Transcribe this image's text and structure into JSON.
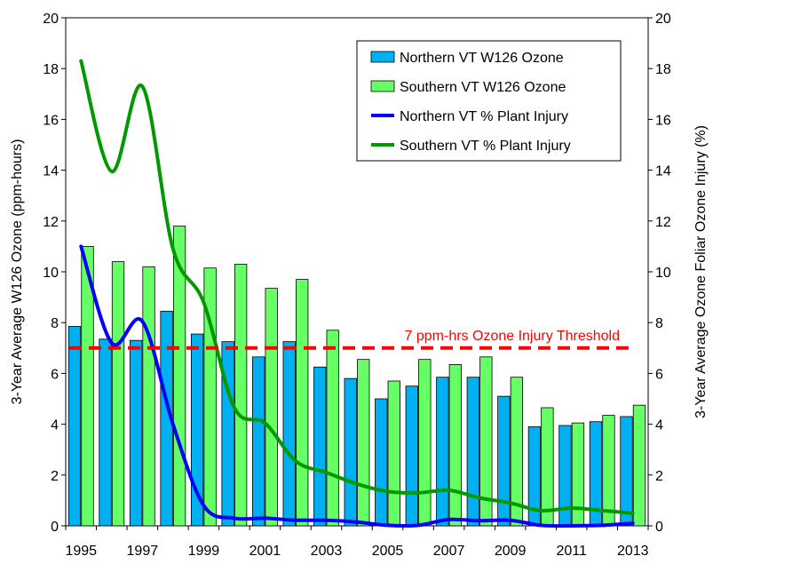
{
  "chart_data": {
    "type": "bar",
    "x": [
      1995,
      1996,
      1997,
      1998,
      1999,
      2000,
      2001,
      2002,
      2003,
      2004,
      2005,
      2006,
      2007,
      2008,
      2009,
      2010,
      2011,
      2012,
      2013
    ],
    "x_tick_labels": [
      "1995",
      "1997",
      "1999",
      "2001",
      "2003",
      "2005",
      "2007",
      "2009",
      "2011",
      "2013"
    ],
    "ylabel": "3-Year Average W126 Ozone (ppm-hours)",
    "y2label": "3-Year Average Ozone Foliar Ozone Injury (%)",
    "ylim": [
      0,
      20
    ],
    "y2lim": [
      0,
      20
    ],
    "y_ticks": [
      0,
      2,
      4,
      6,
      8,
      10,
      12,
      14,
      16,
      18,
      20
    ],
    "bar_series": [
      {
        "name": "Northern VT W126 Ozone",
        "color": "#00B0F0",
        "values": [
          7.85,
          7.35,
          7.3,
          8.45,
          7.55,
          7.25,
          6.65,
          7.25,
          6.25,
          5.8,
          5.0,
          5.5,
          5.85,
          5.85,
          5.1,
          3.9,
          3.95,
          4.1,
          4.3
        ]
      },
      {
        "name": "Southern VT W126 Ozone",
        "color": "#66FF66",
        "values": [
          11.0,
          10.4,
          10.2,
          11.8,
          10.15,
          10.3,
          9.35,
          9.7,
          7.7,
          6.55,
          5.7,
          6.55,
          6.35,
          6.65,
          5.85,
          4.65,
          4.05,
          4.35,
          4.75
        ]
      }
    ],
    "line_series": [
      {
        "name": "Northern VT % Plant Injury",
        "color": "#0000FF",
        "axis": "right",
        "values": [
          11.0,
          7.2,
          8.05,
          4.0,
          0.8,
          0.3,
          0.3,
          0.22,
          0.22,
          0.15,
          0.02,
          0.02,
          0.25,
          0.2,
          0.22,
          0.02,
          0.0,
          0.02,
          0.1
        ]
      },
      {
        "name": "Southern VT % Plant Injury",
        "color": "#009900",
        "axis": "right",
        "values": [
          18.3,
          13.95,
          17.3,
          10.9,
          8.8,
          4.65,
          4.05,
          2.55,
          2.1,
          1.65,
          1.35,
          1.3,
          1.4,
          1.1,
          0.9,
          0.6,
          0.7,
          0.6,
          0.5
        ]
      }
    ],
    "threshold": {
      "value": 7,
      "label": "7 ppm-hrs Ozone Injury Threshold",
      "color": "#FF0000"
    },
    "legend_position": "top-right",
    "grid": false
  }
}
